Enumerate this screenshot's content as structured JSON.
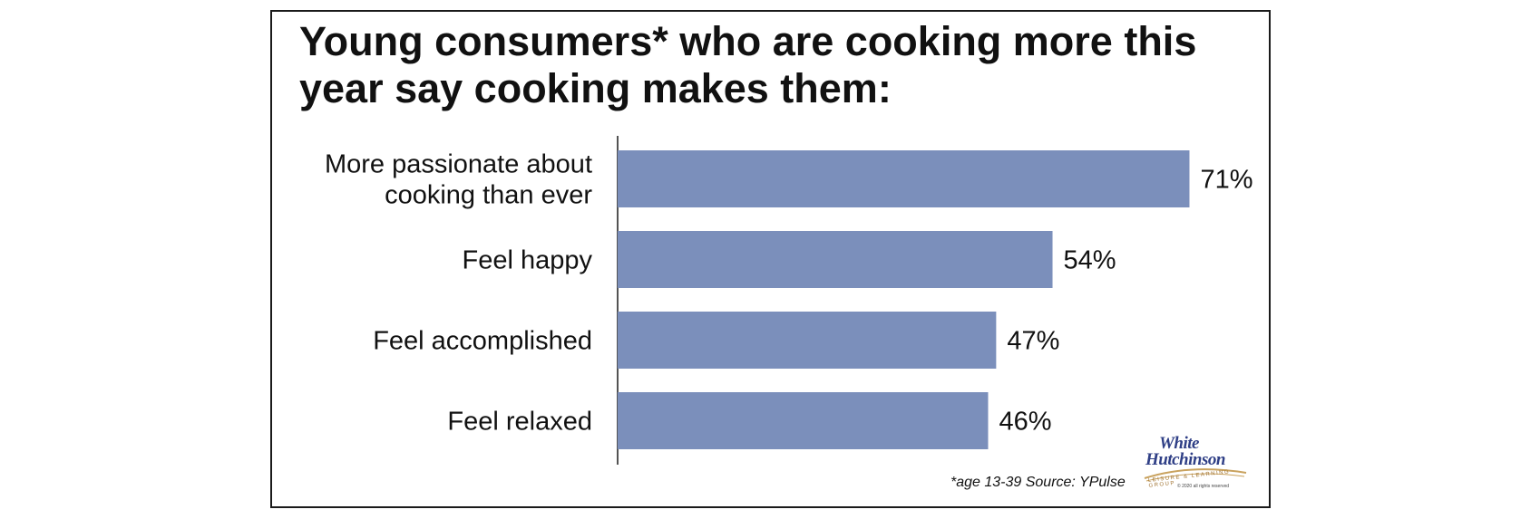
{
  "title": "Young consumers* who are cooking more this year say cooking makes them:",
  "footer": "*age 13-39 Source: YPulse",
  "logo": {
    "line1": "White",
    "line2": "Hutchinson",
    "tagline": "LEISURE & LEARNING GROUP",
    "copyright": "© 2020 all rights reserved"
  },
  "colors": {
    "bar": "#7b8fbb",
    "text": "#111111",
    "axis": "#1a1a1a"
  },
  "chart_data": {
    "type": "bar",
    "orientation": "horizontal",
    "categories": [
      [
        "More passionate about",
        "cooking than ever"
      ],
      [
        "Feel happy"
      ],
      [
        "Feel accomplished"
      ],
      [
        "Feel relaxed"
      ]
    ],
    "values": [
      71,
      54,
      47,
      46
    ],
    "value_labels": [
      "71%",
      "54%",
      "47%",
      "46%"
    ],
    "xlim": [
      0,
      100
    ],
    "grid": false,
    "legend": "none"
  }
}
